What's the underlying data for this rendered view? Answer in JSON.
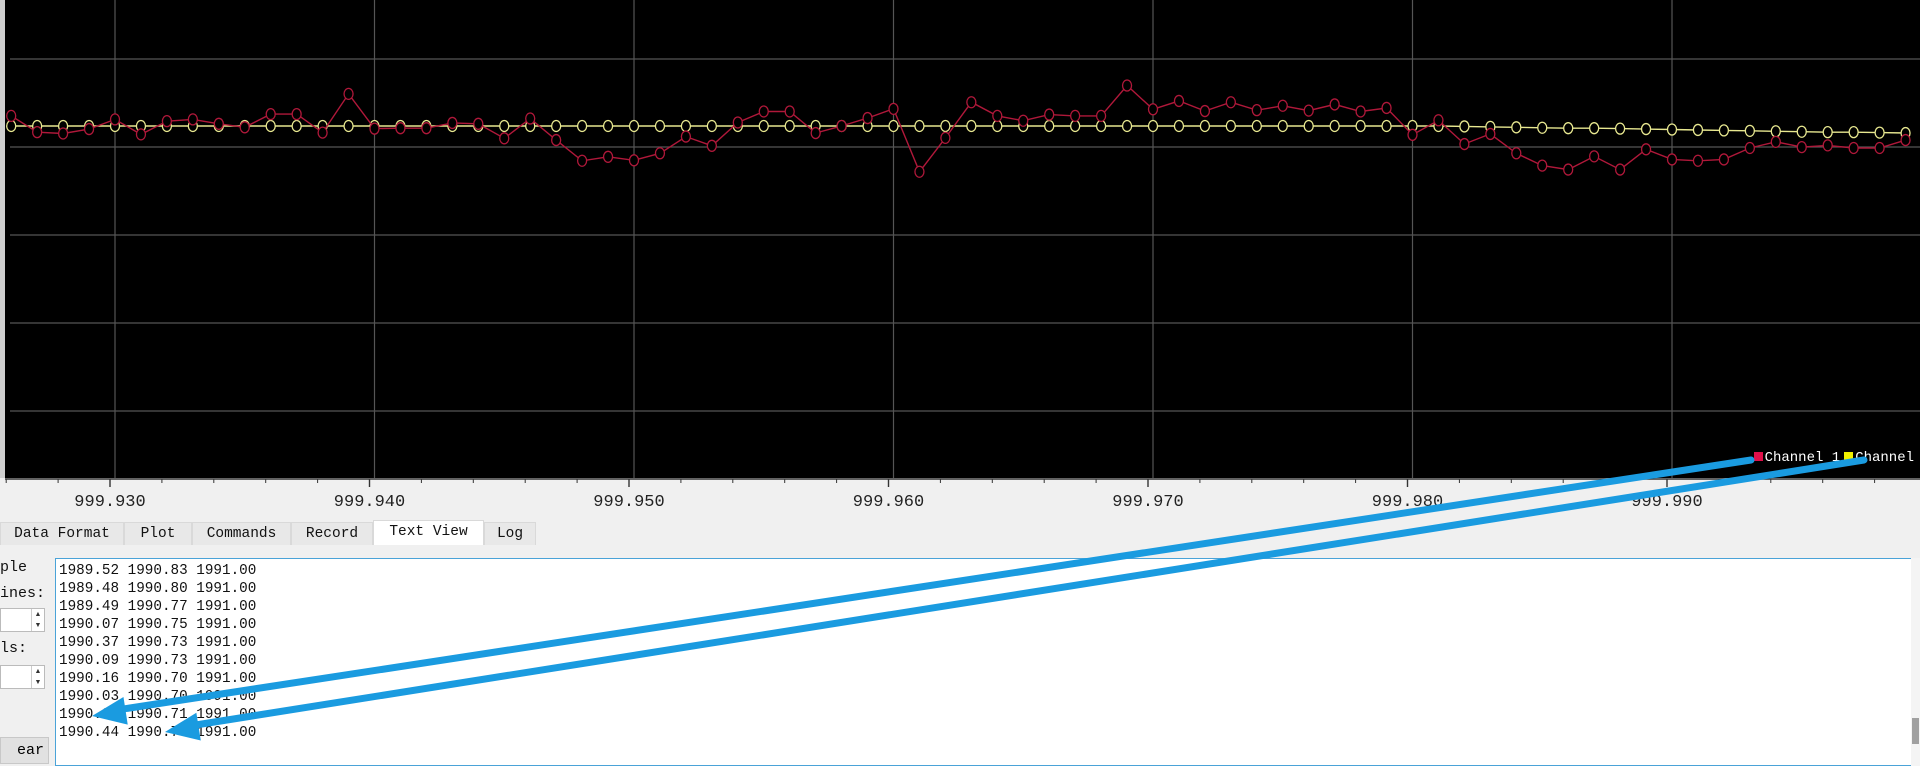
{
  "chart_data": {
    "type": "line",
    "xlabel": "",
    "ylabel": "",
    "x_ticks": [
      "999.930",
      "999.940",
      "999.950",
      "999.960",
      "999.970",
      "999.980",
      "999.990"
    ],
    "x_tick_values": [
      999.93,
      999.94,
      999.95,
      999.96,
      999.97,
      999.98,
      999.99
    ],
    "xlim": [
      999.9258,
      999.9998
    ],
    "ylim": [
      1983.0,
      1993.86
    ],
    "grid": true,
    "legend_placement": "bottom-right",
    "x": [
      999.926,
      999.927,
      999.928,
      999.929,
      999.93,
      999.931,
      999.932,
      999.933,
      999.934,
      999.935,
      999.936,
      999.937,
      999.938,
      999.939,
      999.94,
      999.941,
      999.942,
      999.943,
      999.944,
      999.945,
      999.946,
      999.947,
      999.948,
      999.949,
      999.95,
      999.951,
      999.952,
      999.953,
      999.954,
      999.955,
      999.956,
      999.957,
      999.958,
      999.959,
      999.96,
      999.961,
      999.962,
      999.963,
      999.964,
      999.965,
      999.966,
      999.967,
      999.968,
      999.969,
      999.97,
      999.971,
      999.972,
      999.973,
      999.974,
      999.975,
      999.976,
      999.977,
      999.978,
      999.979,
      999.98,
      999.981,
      999.982,
      999.983,
      999.984,
      999.985,
      999.986,
      999.987,
      999.988,
      999.989,
      999.99,
      999.991,
      999.992,
      999.993,
      999.994,
      999.995,
      999.996,
      999.997,
      999.998,
      999.999
    ],
    "series": [
      {
        "name": "Channel 1",
        "color": "#c8103e",
        "values": [
          1991.23,
          1990.86,
          1990.83,
          1990.93,
          1991.15,
          1990.81,
          1991.11,
          1991.15,
          1991.05,
          1990.97,
          1991.27,
          1991.27,
          1990.85,
          1991.73,
          1990.94,
          1990.95,
          1990.95,
          1991.07,
          1991.05,
          1990.72,
          1991.17,
          1990.68,
          1990.21,
          1990.3,
          1990.22,
          1990.38,
          1990.76,
          1990.55,
          1991.08,
          1991.33,
          1991.33,
          1990.84,
          1991.0,
          1991.18,
          1991.39,
          1989.96,
          1990.73,
          1991.54,
          1991.23,
          1991.12,
          1991.26,
          1991.23,
          1991.23,
          1991.92,
          1991.38,
          1991.57,
          1991.34,
          1991.54,
          1991.36,
          1991.46,
          1991.35,
          1991.49,
          1991.33,
          1991.41,
          1990.8,
          1991.13,
          1990.59,
          1990.82,
          1990.38,
          1990.1,
          1990.01,
          1990.31,
          1990.01,
          1990.47,
          1990.24,
          1990.21,
          1990.24,
          1990.5,
          1990.64,
          1990.52,
          1990.56,
          1990.5,
          1990.5,
          1990.68
        ]
      },
      {
        "name": "Channel",
        "color": "#f0f000",
        "values": [
          1991.0,
          1991.0,
          1991.0,
          1991.0,
          1991.0,
          1991.0,
          1991.0,
          1991.0,
          1991.0,
          1991.0,
          1991.0,
          1991.0,
          1991.0,
          1991.0,
          1991.0,
          1991.0,
          1991.0,
          1991.0,
          1991.0,
          1991.0,
          1991.0,
          1991.0,
          1991.0,
          1991.0,
          1991.0,
          1991.0,
          1991.0,
          1991.0,
          1991.0,
          1991.0,
          1991.0,
          1991.0,
          1991.0,
          1991.0,
          1991.0,
          1991.0,
          1991.0,
          1991.0,
          1991.0,
          1991.0,
          1991.0,
          1991.0,
          1991.0,
          1991.0,
          1991.0,
          1991.0,
          1991.0,
          1991.0,
          1991.0,
          1991.0,
          1991.0,
          1991.0,
          1991.0,
          1991.0,
          1991.0,
          1991.0,
          1990.99,
          1990.98,
          1990.97,
          1990.96,
          1990.95,
          1990.95,
          1990.94,
          1990.93,
          1990.92,
          1990.91,
          1990.9,
          1990.89,
          1990.88,
          1990.87,
          1990.86,
          1990.86,
          1990.85,
          1990.84
        ]
      }
    ]
  },
  "legend": {
    "items": [
      {
        "label": "Channel 1",
        "color": "#e0104a"
      },
      {
        "label": "Channel",
        "color": "#f0f000"
      }
    ]
  },
  "tabs": [
    {
      "label": "Data Format",
      "active": false
    },
    {
      "label": "Plot",
      "active": false
    },
    {
      "label": "Commands",
      "active": false
    },
    {
      "label": "Record",
      "active": false
    },
    {
      "label": "Text View",
      "active": true
    },
    {
      "label": "Log",
      "active": false
    }
  ],
  "side_panel": {
    "enable_label": "ple",
    "lines_label": "ines:",
    "lines_value": "",
    "cols_label": "ls:",
    "cols_value": "",
    "clear_label": "ear"
  },
  "text_view": {
    "lines": [
      "1989.52 1990.83 1991.00",
      "1989.48 1990.80 1991.00",
      "1989.49 1990.77 1991.00",
      "1990.07 1990.75 1991.00",
      "1990.37 1990.73 1991.00",
      "1990.09 1990.73 1991.00",
      "1990.16 1990.70 1991.00",
      "1990.03 1990.70 1991.00",
      "1990.30 1990.71 1991.00",
      "1990.44 1990.70 1991.00"
    ]
  },
  "annotation": {
    "arrow_color": "#1a9be0"
  }
}
